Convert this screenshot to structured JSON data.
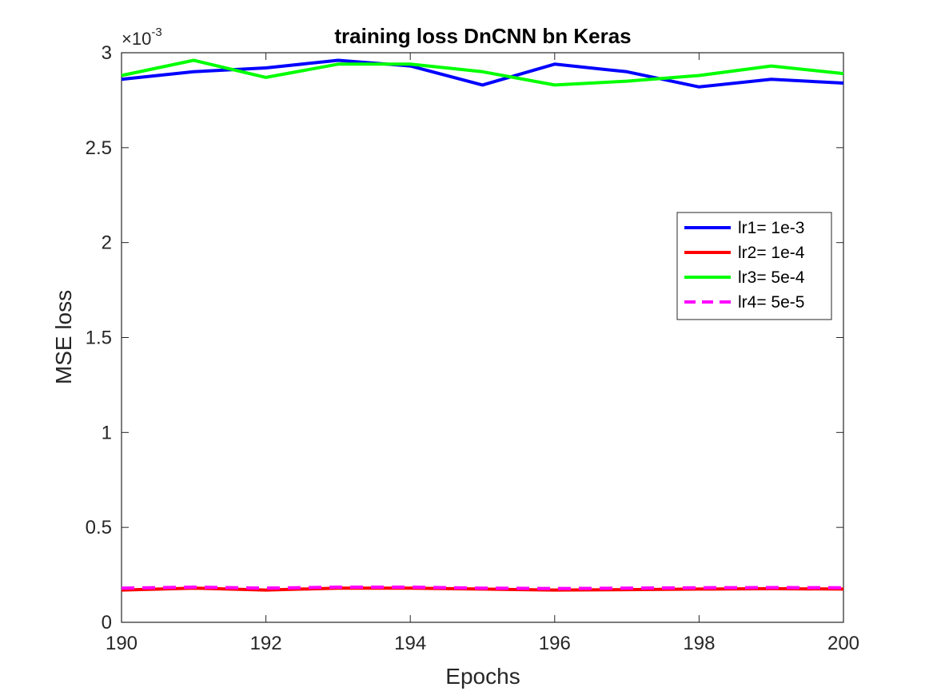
{
  "chart_data": {
    "type": "line",
    "title": "training loss DnCNN bn Keras",
    "xlabel": "Epochs",
    "ylabel": "MSE loss",
    "xlim": [
      190,
      200
    ],
    "ylim": [
      0,
      3
    ],
    "y_exponent": {
      "prefix": "×10",
      "power": "-3"
    },
    "xticks": [
      190,
      192,
      194,
      196,
      198,
      200
    ],
    "yticks": [
      0,
      0.5,
      1,
      1.5,
      2,
      2.5,
      3
    ],
    "xtick_labels": [
      "190",
      "192",
      "194",
      "196",
      "198",
      "200"
    ],
    "ytick_labels": [
      "0",
      "0.5",
      "1",
      "1.5",
      "2",
      "2.5",
      "3"
    ],
    "x": [
      190,
      191,
      192,
      193,
      194,
      195,
      196,
      197,
      198,
      199,
      200
    ],
    "grid": false,
    "legend_position": "right",
    "series": [
      {
        "name": "lr1= 1e-3",
        "color": "#0000ff",
        "dashed": false,
        "values": [
          2.86,
          2.9,
          2.92,
          2.96,
          2.93,
          2.83,
          2.94,
          2.9,
          2.82,
          2.86,
          2.84
        ]
      },
      {
        "name": "lr2= 1e-4",
        "color": "#ff0000",
        "dashed": false,
        "values": [
          0.17,
          0.18,
          0.17,
          0.18,
          0.18,
          0.175,
          0.17,
          0.172,
          0.175,
          0.177,
          0.175
        ]
      },
      {
        "name": "lr3= 5e-4",
        "color": "#00ff00",
        "dashed": false,
        "values": [
          2.88,
          2.96,
          2.87,
          2.94,
          2.94,
          2.9,
          2.83,
          2.85,
          2.88,
          2.93,
          2.89
        ]
      },
      {
        "name": "lr4= 5e-5",
        "color": "#ff00ff",
        "dashed": true,
        "values": [
          0.18,
          0.185,
          0.18,
          0.185,
          0.185,
          0.18,
          0.178,
          0.18,
          0.182,
          0.183,
          0.182
        ]
      }
    ]
  }
}
